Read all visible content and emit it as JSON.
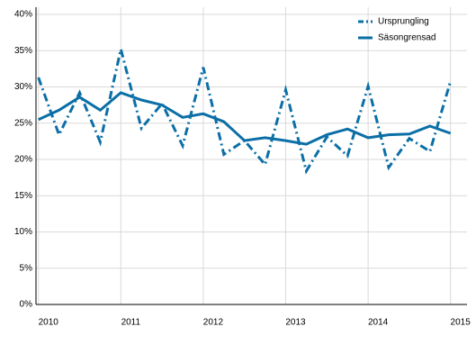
{
  "chart_data": {
    "type": "line",
    "x": [
      2010,
      2010.25,
      2010.5,
      2010.75,
      2011,
      2011.25,
      2011.5,
      2011.75,
      2012,
      2012.25,
      2012.5,
      2012.75,
      2013,
      2013.25,
      2013.5,
      2013.75,
      2014,
      2014.25,
      2014.5,
      2014.75,
      2015
    ],
    "series": [
      {
        "name": "Ursprungling",
        "color": "#0b6fa6",
        "dash": true,
        "values": [
          31.3,
          23.4,
          29.2,
          22.4,
          35.2,
          24.3,
          27.7,
          21.9,
          32.7,
          20.7,
          22.6,
          19.3,
          29.6,
          18.4,
          23.1,
          20.5,
          30.1,
          18.9,
          22.9,
          21.1,
          30.8
        ]
      },
      {
        "name": "Säsongrensad",
        "color": "#0b6fa6",
        "dash": false,
        "values": [
          25.5,
          26.8,
          28.6,
          26.8,
          29.2,
          28.2,
          27.5,
          25.8,
          26.3,
          25.2,
          22.6,
          23.0,
          22.6,
          22.1,
          23.4,
          24.2,
          23.0,
          23.4,
          23.5,
          24.6,
          23.6
        ]
      }
    ],
    "xlim": [
      2009.97,
      2015.2
    ],
    "xticks": [
      2010,
      2011,
      2012,
      2013,
      2014,
      2015
    ],
    "ylim": [
      0,
      40
    ],
    "yticks": [
      {
        "value": 0,
        "label": "0%"
      },
      {
        "value": 5,
        "label": "5%"
      },
      {
        "value": 10,
        "label": "10%"
      },
      {
        "value": 15,
        "label": "15%"
      },
      {
        "value": 20,
        "label": "20%"
      },
      {
        "value": 25,
        "label": "25%"
      },
      {
        "value": 30,
        "label": "30%"
      },
      {
        "value": 35,
        "label": "35%"
      },
      {
        "value": 40,
        "label": "40%"
      }
    ],
    "grid": true,
    "legend": "top-right"
  }
}
